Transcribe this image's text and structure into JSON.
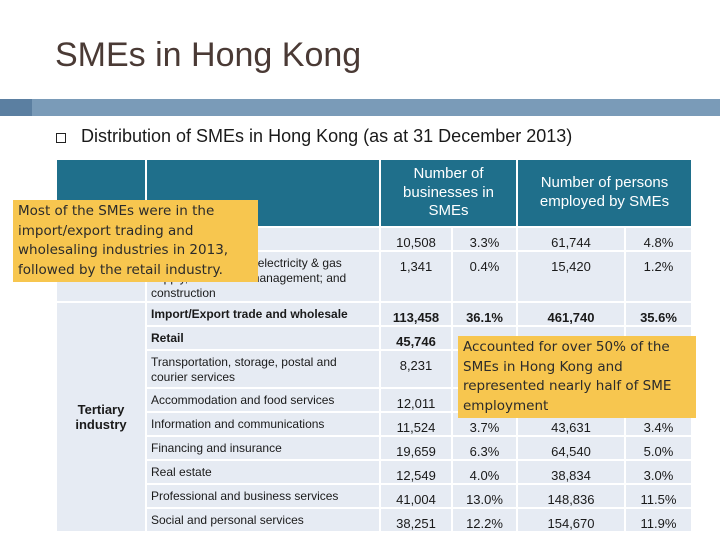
{
  "title": "SMEs in Hong Kong",
  "subtitle": "Distribution of SMEs in Hong Kong (as at 31 December 2013)",
  "table": {
    "headers": {
      "businesses": "Number of businesses in SMEs",
      "persons": "Number of persons employed by SMEs"
    },
    "tertiary_label": "Tertiary industry",
    "rows": [
      {
        "industry": "",
        "businesses": "10,508",
        "bpct": "3.3%",
        "persons": "61,744",
        "ppct": "4.8%",
        "bold": false
      },
      {
        "industry": "Mining & quarrying; electricity & gas supply, and waste management; and construction",
        "businesses": "1,341",
        "bpct": "0.4%",
        "persons": "15,420",
        "ppct": "1.2%",
        "bold": false
      },
      {
        "industry": "Import/Export trade and wholesale",
        "businesses": "113,458",
        "bpct": "36.1%",
        "persons": "461,740",
        "ppct": "35.6%",
        "bold": true
      },
      {
        "industry": "Retail",
        "businesses": "45,746",
        "bpct": "",
        "persons": "",
        "ppct": "",
        "bold": true
      },
      {
        "industry": "Transportation, storage, postal and courier services",
        "businesses": "8,231",
        "bpct": "",
        "persons": "",
        "ppct": "",
        "bold": false
      },
      {
        "industry": "Accommodation and food services",
        "businesses": "12,011",
        "bpct": "",
        "persons": "",
        "ppct": "",
        "bold": false
      },
      {
        "industry": "Information and communications",
        "businesses": "11,524",
        "bpct": "3.7%",
        "persons": "43,631",
        "ppct": "3.4%",
        "bold": false
      },
      {
        "industry": "Financing and insurance",
        "businesses": "19,659",
        "bpct": "6.3%",
        "persons": "64,540",
        "ppct": "5.0%",
        "bold": false
      },
      {
        "industry": "Real estate",
        "businesses": "12,549",
        "bpct": "4.0%",
        "persons": "38,834",
        "ppct": "3.0%",
        "bold": false
      },
      {
        "industry": "Professional and business services",
        "businesses": "41,004",
        "bpct": "13.0%",
        "persons": "148,836",
        "ppct": "11.5%",
        "bold": false
      },
      {
        "industry": "Social and personal services",
        "businesses": "38,251",
        "bpct": "12.2%",
        "persons": "154,670",
        "ppct": "11.9%",
        "bold": false
      }
    ]
  },
  "callouts": {
    "left": "Most of the SMEs were in the import/export trading and wholesaling industries in 2013, followed by the retail industry.",
    "right": "Accounted for over 50% of the SMEs in Hong Kong and represented nearly half of SME employment"
  }
}
